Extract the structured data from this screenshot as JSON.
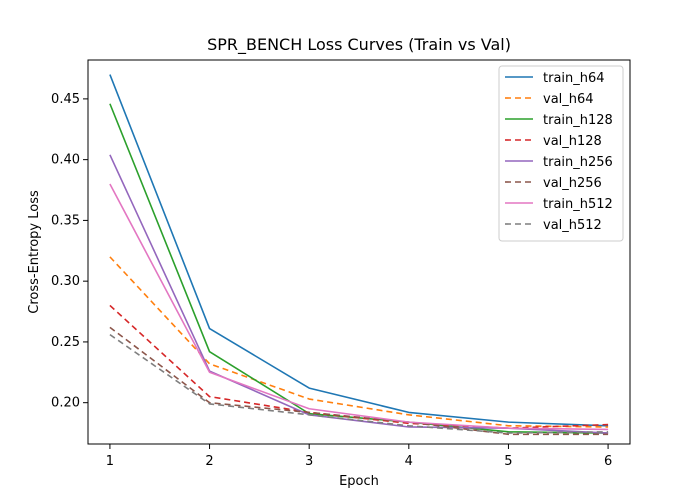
{
  "chart_data": {
    "type": "line",
    "title": "SPR_BENCH Loss Curves (Train vs Val)",
    "xlabel": "Epoch",
    "ylabel": "Cross-Entropy Loss",
    "x": [
      1,
      2,
      3,
      4,
      5,
      6
    ],
    "xticks": [
      "1",
      "2",
      "3",
      "4",
      "5",
      "6"
    ],
    "yticks": [
      "0.20",
      "0.25",
      "0.30",
      "0.35",
      "0.40",
      "0.45"
    ],
    "xlim": [
      0.78,
      6.22
    ],
    "ylim": [
      0.166,
      0.482
    ],
    "grid": false,
    "legend_position": "top-right",
    "series": [
      {
        "name": "train_h64",
        "style": "solid",
        "color": "#1f77b4",
        "values": [
          0.47,
          0.261,
          0.212,
          0.192,
          0.184,
          0.181
        ]
      },
      {
        "name": "val_h64",
        "style": "dashed",
        "color": "#ff7f0e",
        "values": [
          0.32,
          0.232,
          0.203,
          0.19,
          0.181,
          0.18
        ]
      },
      {
        "name": "train_h128",
        "style": "solid",
        "color": "#2ca02c",
        "values": [
          0.446,
          0.242,
          0.191,
          0.184,
          0.176,
          0.175
        ]
      },
      {
        "name": "val_h128",
        "style": "dashed",
        "color": "#d62728",
        "values": [
          0.28,
          0.205,
          0.192,
          0.183,
          0.179,
          0.182
        ]
      },
      {
        "name": "train_h256",
        "style": "solid",
        "color": "#9467bd",
        "values": [
          0.404,
          0.226,
          0.19,
          0.18,
          0.179,
          0.175
        ]
      },
      {
        "name": "val_h256",
        "style": "dashed",
        "color": "#8c564b",
        "values": [
          0.262,
          0.2,
          0.192,
          0.184,
          0.174,
          0.174
        ]
      },
      {
        "name": "train_h512",
        "style": "solid",
        "color": "#e377c2",
        "values": [
          0.38,
          0.225,
          0.195,
          0.184,
          0.179,
          0.178
        ]
      },
      {
        "name": "val_h512",
        "style": "dashed",
        "color": "#7f7f7f",
        "values": [
          0.256,
          0.199,
          0.19,
          0.181,
          0.175,
          0.176
        ]
      }
    ]
  }
}
